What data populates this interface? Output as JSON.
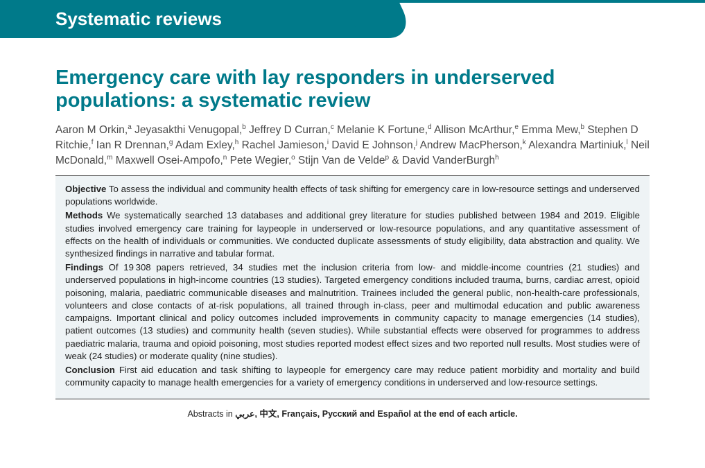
{
  "header": {
    "section_label": "Systematic reviews"
  },
  "article": {
    "title": "Emergency care with lay responders in underserved populations: a systematic review",
    "authors_html": "Aaron M Orkin,<sup>a</sup> Jeyasakthi Venugopal,<sup>b</sup> Jeffrey D Curran,<sup>c</sup> Melanie K Fortune,<sup>d</sup> Allison McArthur,<sup>e</sup> Emma Mew,<sup>b</sup> Stephen D Ritchie,<sup>f</sup> Ian R Drennan,<sup>g</sup> Adam Exley,<sup>h</sup> Rachel Jamieson,<sup>i</sup> David E Johnson,<sup>j</sup> Andrew MacPherson,<sup>k</sup> Alexandra Martiniuk,<sup>l</sup> Neil McDonald,<sup>m</sup> Maxwell Osei-Ampofo,<sup>n</sup> Pete Wegier,<sup>o</sup> Stijn Van de Velde<sup>p</sup> & David VanderBurgh<sup>h</sup>"
  },
  "abstract": {
    "objective_label": "Objective",
    "objective_text": " To assess the individual and community health effects of task shifting for emergency care in low-resource settings and underserved populations worldwide.",
    "methods_label": "Methods",
    "methods_text": " We systematically searched 13 databases and additional grey literature for studies published between 1984 and 2019. Eligible studies involved emergency care training for laypeople in underserved or low-resource populations, and any quantitative assessment of effects on the health of individuals or communities. We conducted duplicate assessments of study eligibility, data abstraction and quality. We synthesized findings in narrative and tabular format.",
    "findings_label": "Findings",
    "findings_text": " Of 19 308 papers retrieved, 34 studies met the inclusion criteria from low- and middle-income countries (21 studies) and underserved populations in high-income countries (13 studies). Targeted emergency conditions included trauma, burns, cardiac arrest, opioid poisoning, malaria, paediatric communicable diseases and malnutrition. Trainees included the general public, non-health-care professionals, volunteers and close contacts of at-risk populations, all trained through in-class, peer and multimodal education and public awareness campaigns. Important clinical and policy outcomes included improvements in community capacity to manage emergencies (14 studies), patient outcomes (13 studies) and community health (seven studies). While substantial effects were observed for programmes to address paediatric malaria, trauma and opioid poisoning, most studies reported modest effect sizes and two reported null results. Most studies were of weak (24 studies) or moderate quality (nine studies).",
    "conclusion_label": "Conclusion",
    "conclusion_text": " First aid education and task shifting to laypeople for emergency care may reduce patient morbidity and mortality and build community capacity to manage health emergencies for a variety of emergency conditions in underserved and low-resource settings."
  },
  "footer": {
    "languages_prefix": "Abstracts in ",
    "languages_list": "عربي, 中文, Français, Русский and Español",
    "languages_suffix": " at the end of each article."
  }
}
